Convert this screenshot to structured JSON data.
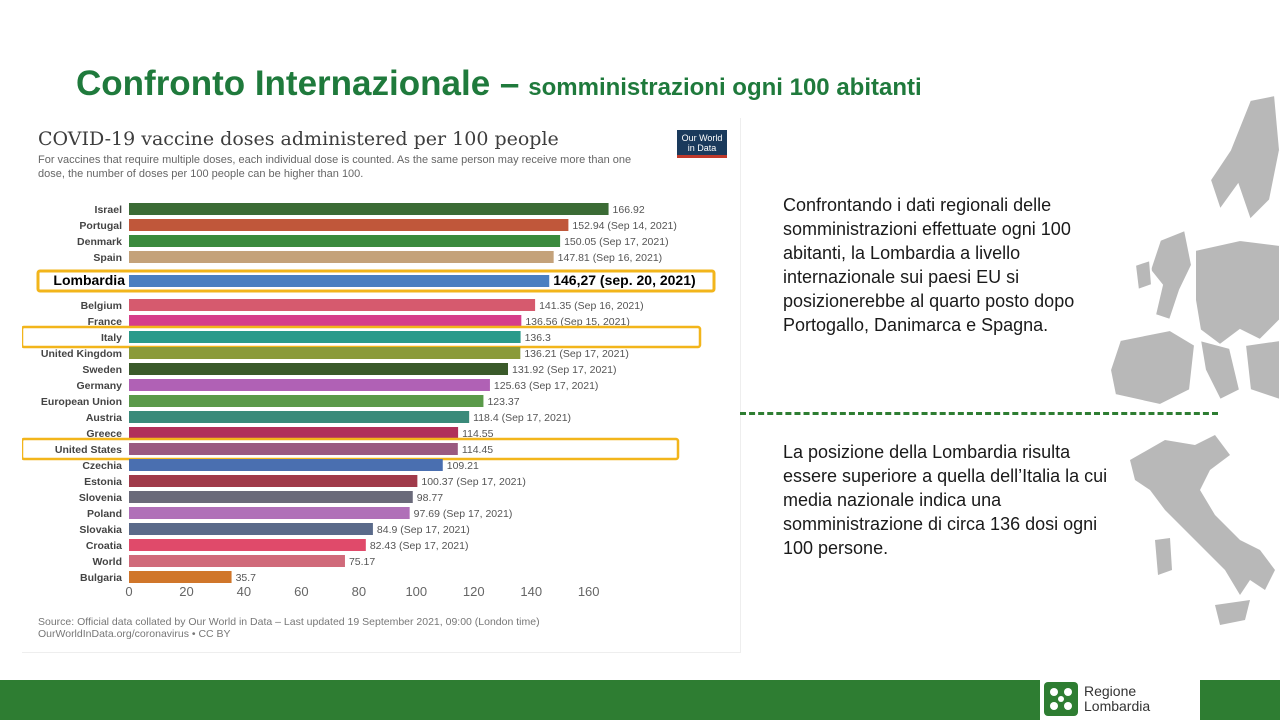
{
  "slide": {
    "title_main": "Confronto Internazionale –",
    "title_sub": "somministrazioni ogni 100 abitanti",
    "text1": "Confrontando i dati regionali delle somministrazioni effettuate ogni 100 abitanti, la Lombardia a livello internazionale sui paesi EU si posizionerebbe al quarto posto dopo Portogallo, Danimarca e Spagna.",
    "text2": "La posizione della Lombardia risulta essere superiore a quella dell’Italia la cui media nazionale indica una somministrazione di circa 136 dosi ogni 100 persone.",
    "brand_name": "Regione\nLombardia"
  },
  "chart_data": {
    "type": "bar",
    "orientation": "horizontal",
    "title": "COVID-19 vaccine doses administered per 100 people",
    "subtitle": "For vaccines that require multiple doses, each individual dose is counted. As the same person may receive more than one dose, the number of doses per 100 people can be higher than 100.",
    "logo_text": "Our World in Data",
    "source": "Source: Official data collated by Our World in Data – Last updated 19 September 2021, 09:00 (London time)\nOurWorldInData.org/coronavirus • CC BY",
    "xlim": [
      0,
      170
    ],
    "x_ticks": [
      0,
      20,
      40,
      60,
      80,
      100,
      120,
      140,
      160
    ],
    "bars": [
      {
        "name": "Israel",
        "value": 166.92,
        "label": "166.92",
        "color": "#3b6b35"
      },
      {
        "name": "Portugal",
        "value": 152.94,
        "label": "152.94 (Sep 14, 2021)",
        "color": "#c0573a"
      },
      {
        "name": "Denmark",
        "value": 150.05,
        "label": "150.05 (Sep 17, 2021)",
        "color": "#3a8a3d"
      },
      {
        "name": "Spain",
        "value": 147.81,
        "label": "147.81 (Sep 16, 2021)",
        "color": "#c4a27a"
      },
      {
        "name": "Lombardia",
        "value": 146.27,
        "label": "146,27 (sep. 20, 2021)",
        "color": "#4a7fc1",
        "highlight": "box"
      },
      {
        "name": "Belgium",
        "value": 141.35,
        "label": "141.35 (Sep 16, 2021)",
        "color": "#d65a6e"
      },
      {
        "name": "France",
        "value": 136.56,
        "label": "136.56 (Sep 15, 2021)",
        "color": "#d63e8a"
      },
      {
        "name": "Italy",
        "value": 136.3,
        "label": "136.3",
        "color": "#2a9a8a",
        "highlight": "outline"
      },
      {
        "name": "United Kingdom",
        "value": 136.21,
        "label": "136.21 (Sep 17, 2021)",
        "color": "#8a9a3a"
      },
      {
        "name": "Sweden",
        "value": 131.92,
        "label": "131.92 (Sep 17, 2021)",
        "color": "#3a5a2a"
      },
      {
        "name": "Germany",
        "value": 125.63,
        "label": "125.63 (Sep 17, 2021)",
        "color": "#b061b5"
      },
      {
        "name": "European Union",
        "value": 123.37,
        "label": "123.37",
        "color": "#5a9a4a"
      },
      {
        "name": "Austria",
        "value": 118.4,
        "label": "118.4 (Sep 17, 2021)",
        "color": "#3a8a7a"
      },
      {
        "name": "Greece",
        "value": 114.55,
        "label": "114.55",
        "color": "#b0305a"
      },
      {
        "name": "United States",
        "value": 114.45,
        "label": "114.45",
        "color": "#9a5a80",
        "highlight": "outline"
      },
      {
        "name": "Czechia",
        "value": 109.21,
        "label": "109.21",
        "color": "#4a6fb0"
      },
      {
        "name": "Estonia",
        "value": 100.37,
        "label": "100.37 (Sep 17, 2021)",
        "color": "#a03a4a"
      },
      {
        "name": "Slovenia",
        "value": 98.77,
        "label": "98.77",
        "color": "#6a6a7a"
      },
      {
        "name": "Poland",
        "value": 97.69,
        "label": "97.69 (Sep 17, 2021)",
        "color": "#b070b8"
      },
      {
        "name": "Slovakia",
        "value": 84.9,
        "label": "84.9 (Sep 17, 2021)",
        "color": "#5a6a8a"
      },
      {
        "name": "Croatia",
        "value": 82.43,
        "label": "82.43 (Sep 17, 2021)",
        "color": "#e04a6a"
      },
      {
        "name": "World",
        "value": 75.17,
        "label": "75.17",
        "color": "#d06a7a"
      },
      {
        "name": "Bulgaria",
        "value": 35.7,
        "label": "35.7",
        "color": "#d0762a"
      }
    ],
    "highlight_color": "#f2b51b",
    "grid": false
  }
}
